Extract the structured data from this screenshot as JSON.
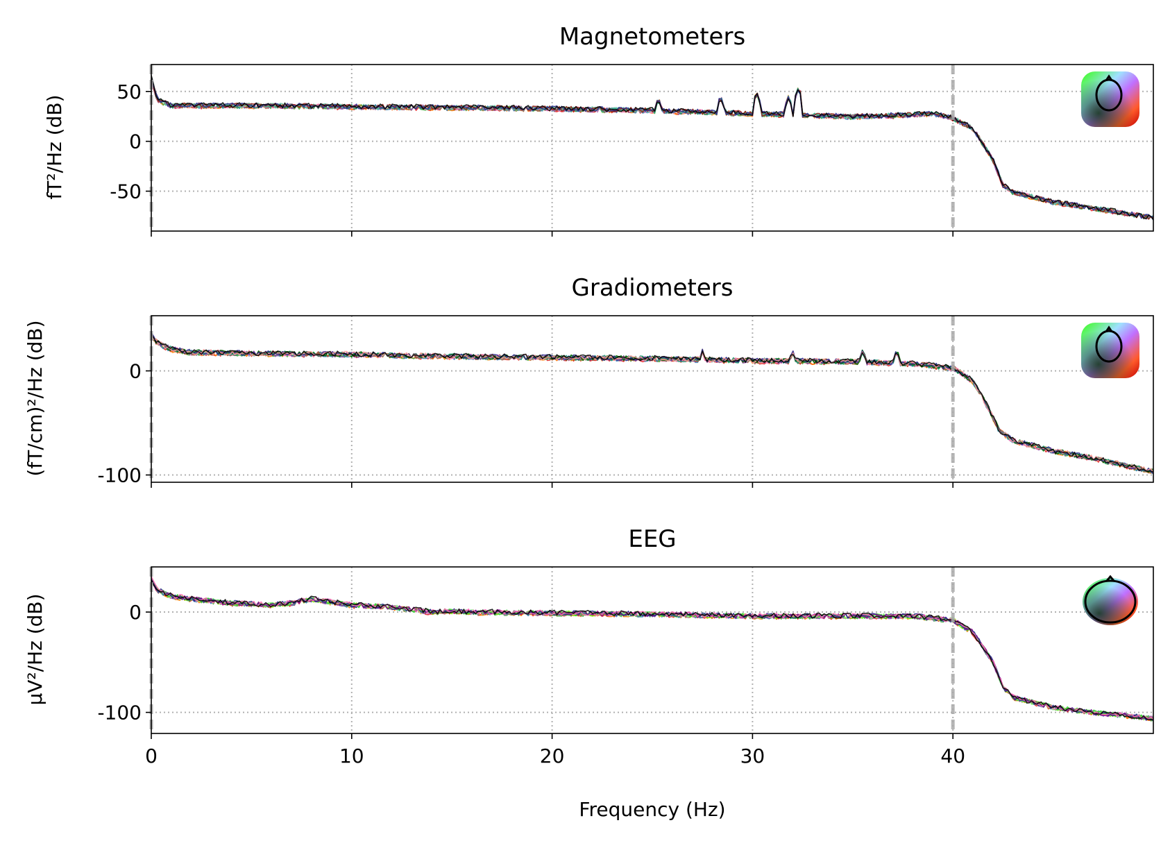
{
  "chart_data": [
    {
      "type": "line",
      "title": "Magnetometers",
      "ylabel": "fT²/Hz (dB)",
      "xlabel": "",
      "xlim": [
        0,
        50
      ],
      "ylim": [
        -90,
        77
      ],
      "x_ticks": [
        0,
        10,
        20,
        30,
        40
      ],
      "y_ticks": [
        50,
        0,
        -50
      ],
      "y_tick_labels": [
        "50",
        "0",
        "-50"
      ],
      "x_tick_labels_shown": false,
      "grid": true,
      "vertical_markers": [
        0,
        40
      ],
      "legend": "sensor-topomap inset (top-right)",
      "envelope": {
        "x": [
          0,
          0.3,
          1,
          2,
          5,
          10,
          15,
          20,
          25,
          30,
          35,
          37,
          39,
          40,
          41,
          42,
          42.5,
          43,
          45,
          47,
          50
        ],
        "y": [
          62,
          40,
          34,
          34,
          34,
          33,
          32,
          31,
          29,
          26,
          23,
          24,
          26,
          22,
          12,
          -20,
          -45,
          -52,
          -62,
          -68,
          -78
        ]
      },
      "peaks": [
        [
          25.3,
          43
        ],
        [
          28.4,
          45
        ],
        [
          30.2,
          49
        ],
        [
          31.8,
          45
        ],
        [
          32.3,
          54
        ]
      ],
      "series_colors": [
        "#e41a1c",
        "#ff7f00",
        "#4daf4a",
        "#377eb8",
        "#984ea3",
        "#a65628",
        "#f781bf",
        "#1b9e77",
        "#66c2a5",
        "#8c1c13",
        "#2c2c8c",
        "#000000"
      ]
    },
    {
      "type": "line",
      "title": "Gradiometers",
      "ylabel": "(fT/cm)²/Hz (dB)",
      "xlabel": "",
      "xlim": [
        0,
        50
      ],
      "ylim": [
        -107,
        53
      ],
      "x_ticks": [
        0,
        10,
        20,
        30,
        40
      ],
      "y_ticks": [
        0,
        -100
      ],
      "y_tick_labels": [
        "0",
        "-100"
      ],
      "x_tick_labels_shown": false,
      "grid": true,
      "vertical_markers": [
        0,
        40
      ],
      "legend": "sensor-topomap inset (top-right)",
      "envelope": {
        "x": [
          0,
          0.3,
          1,
          2,
          5,
          10,
          15,
          20,
          25,
          30,
          35,
          38,
          39.5,
          40,
          41,
          41.8,
          42.3,
          43,
          45,
          47,
          50
        ],
        "y": [
          38,
          30,
          24,
          21,
          20,
          19,
          17,
          16,
          15,
          13,
          12,
          10,
          7,
          5,
          -8,
          -35,
          -55,
          -65,
          -75,
          -82,
          -95
        ]
      },
      "peaks": [
        [
          27.5,
          19
        ],
        [
          32,
          19
        ],
        [
          35.5,
          20
        ],
        [
          37.2,
          20
        ]
      ],
      "series_colors": [
        "#e41a1c",
        "#ff7f00",
        "#4daf4a",
        "#377eb8",
        "#984ea3",
        "#a65628",
        "#f781bf",
        "#1b9e77",
        "#006400",
        "#2c2c8c",
        "#fb9a99",
        "#000000"
      ]
    },
    {
      "type": "line",
      "title": "EEG",
      "ylabel": "μV²/Hz (dB)",
      "xlabel": "Frequency (Hz)",
      "xlim": [
        0,
        50
      ],
      "ylim": [
        -121,
        45
      ],
      "x_ticks": [
        0,
        10,
        20,
        30,
        40
      ],
      "x_tick_labels": [
        "0",
        "10",
        "20",
        "30",
        "40"
      ],
      "y_ticks": [
        0,
        -100
      ],
      "y_tick_labels": [
        "0",
        "-100"
      ],
      "x_tick_labels_shown": true,
      "grid": true,
      "vertical_markers": [
        0,
        40
      ],
      "legend": "sensor-topomap inset (top-right)",
      "envelope": {
        "x": [
          0,
          0.3,
          1,
          2,
          4,
          6,
          7,
          8,
          9,
          10,
          12,
          14,
          15,
          16,
          20,
          25,
          30,
          35,
          38,
          40,
          41,
          42,
          42.5,
          43,
          45,
          47,
          50
        ],
        "y": [
          33,
          22,
          16,
          13,
          9,
          7,
          9,
          13,
          10,
          7,
          5,
          0,
          1,
          0,
          -1,
          -2,
          -4,
          -4,
          -4,
          -8,
          -20,
          -50,
          -75,
          -85,
          -95,
          -100,
          -106
        ]
      },
      "peaks": [],
      "series_colors": [
        "#e41a1c",
        "#ff7f00",
        "#4daf4a",
        "#377eb8",
        "#984ea3",
        "#7cfc00",
        "#90ee90",
        "#32cd32",
        "#8b008b",
        "#2c2c8c",
        "#ff69b4",
        "#000000"
      ]
    }
  ]
}
